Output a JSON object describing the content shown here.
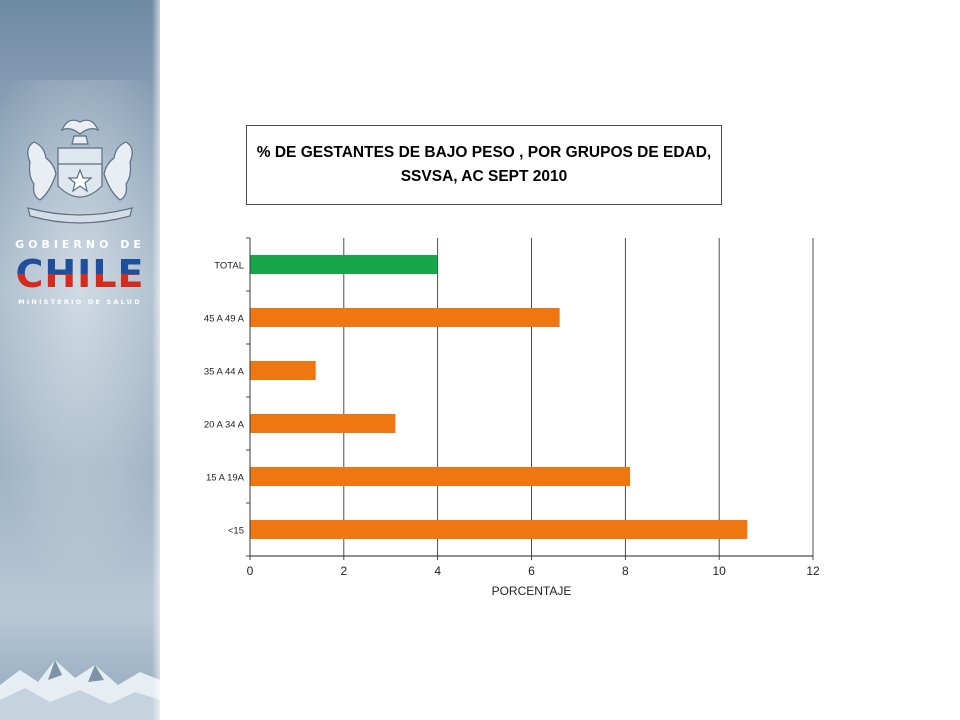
{
  "branding": {
    "government_label": "GOBIERNO DE",
    "country_word": "CHILE",
    "ministry_label": "MINISTERIO DE SALUD"
  },
  "colors": {
    "total_bar": "#19a64a",
    "group_bar": "#ee7711",
    "grid": "#000000",
    "title_border": "#4a4a4a"
  },
  "chart_data": {
    "type": "bar",
    "orientation": "horizontal",
    "title": "% DE GESTANTES DE BAJO PESO ,  POR GRUPOS DE EDAD,\nSSVSA, AC SEPT 2010",
    "xlabel": "PORCENTAJE",
    "ylabel": "",
    "categories": [
      "TOTAL",
      "45 A 49 A",
      "35 A 44 A",
      "20 A 34 A",
      "15 A 19A",
      "<15"
    ],
    "values": [
      4.0,
      6.6,
      1.4,
      3.1,
      8.1,
      10.6
    ],
    "bar_colors": [
      "#19a64a",
      "#ee7711",
      "#ee7711",
      "#ee7711",
      "#ee7711",
      "#ee7711"
    ],
    "xlim": [
      0,
      12
    ],
    "xticks": [
      0,
      2,
      4,
      6,
      8,
      10,
      12
    ],
    "grid": "vertical",
    "legend": "none"
  }
}
